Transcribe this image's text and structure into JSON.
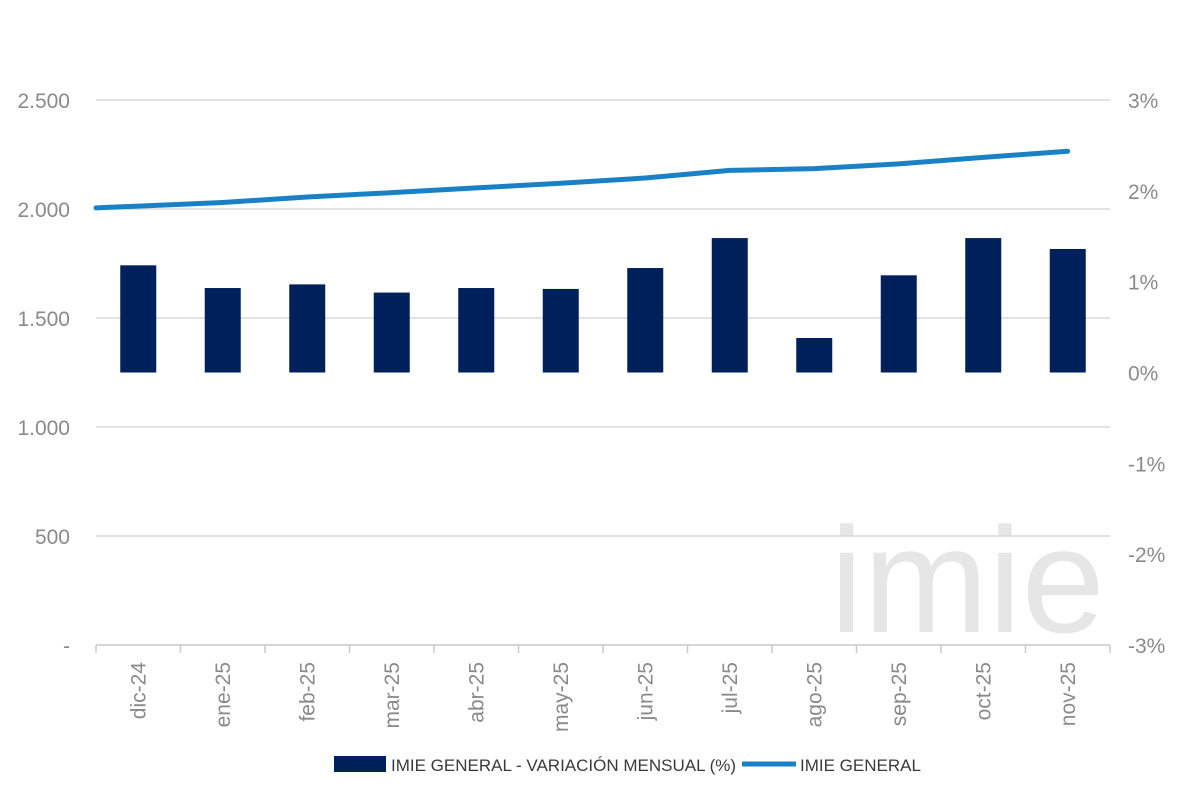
{
  "chart_data": {
    "type": "bar+line",
    "categories": [
      "dic-24",
      "ene-25",
      "feb-25",
      "mar-25",
      "abr-25",
      "may-25",
      "jun-25",
      "jul-25",
      "ago-25",
      "sep-25",
      "oct-25",
      "nov-25"
    ],
    "series": [
      {
        "name": "IMIE GENERAL - VARIACIÓN MENSUAL (%)",
        "type": "bar",
        "axis": "right",
        "color": "#00205b",
        "values": [
          1.18,
          0.93,
          0.97,
          0.88,
          0.93,
          0.92,
          1.15,
          1.48,
          0.38,
          1.07,
          1.48,
          1.36
        ]
      },
      {
        "name": "IMIE GENERAL",
        "type": "line",
        "axis": "left",
        "color": "#1a82c4",
        "values": [
          2005,
          2030,
          2055,
          2075,
          2097,
          2118,
          2142,
          2177,
          2185,
          2207,
          2237,
          2265
        ]
      }
    ],
    "y_left": {
      "min": 0,
      "max": 2500,
      "ticks": [
        0,
        500,
        1000,
        1500,
        2000,
        2500
      ],
      "tick_labels": [
        "-",
        "500",
        "1.000",
        "1.500",
        "2.000",
        "2.500"
      ]
    },
    "y_right": {
      "min": -3,
      "max": 3,
      "ticks": [
        -3,
        -2,
        -1,
        0,
        1,
        2,
        3
      ],
      "tick_labels": [
        "-3%",
        "-2%",
        "-1%",
        "0%",
        "1%",
        "2%",
        "3%"
      ]
    },
    "grid": true,
    "legend_position": "bottom",
    "watermark": "imie"
  }
}
